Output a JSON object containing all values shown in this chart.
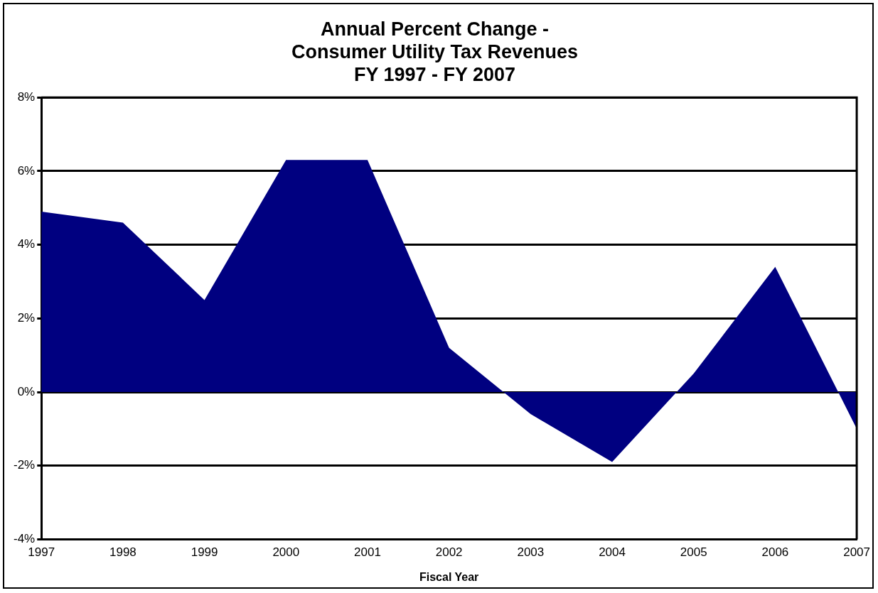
{
  "chart_data": {
    "type": "area",
    "title": "Annual Percent Change -\nConsumer Utility Tax Revenues\nFY 1997 - FY 2007",
    "xlabel": "Fiscal Year",
    "categories": [
      "1997",
      "1998",
      "1999",
      "2000",
      "2001",
      "2002",
      "2003",
      "2004",
      "2005",
      "2006",
      "2007"
    ],
    "series": [
      {
        "color": "#000080",
        "values": [
          4.9,
          4.6,
          2.5,
          6.3,
          6.3,
          1.2,
          -0.6,
          -1.9,
          0.5,
          3.4,
          -1.0
        ]
      }
    ],
    "ylim": [
      -4,
      8
    ],
    "yticks": [
      {
        "value": -4,
        "label": "-4%"
      },
      {
        "value": -2,
        "label": "-2%"
      },
      {
        "value": 0,
        "label": "0%"
      },
      {
        "value": 2,
        "label": "2%"
      },
      {
        "value": 4,
        "label": "4%"
      },
      {
        "value": 6,
        "label": "6%"
      },
      {
        "value": 8,
        "label": "8%"
      }
    ],
    "grid": "y",
    "legend": false
  }
}
